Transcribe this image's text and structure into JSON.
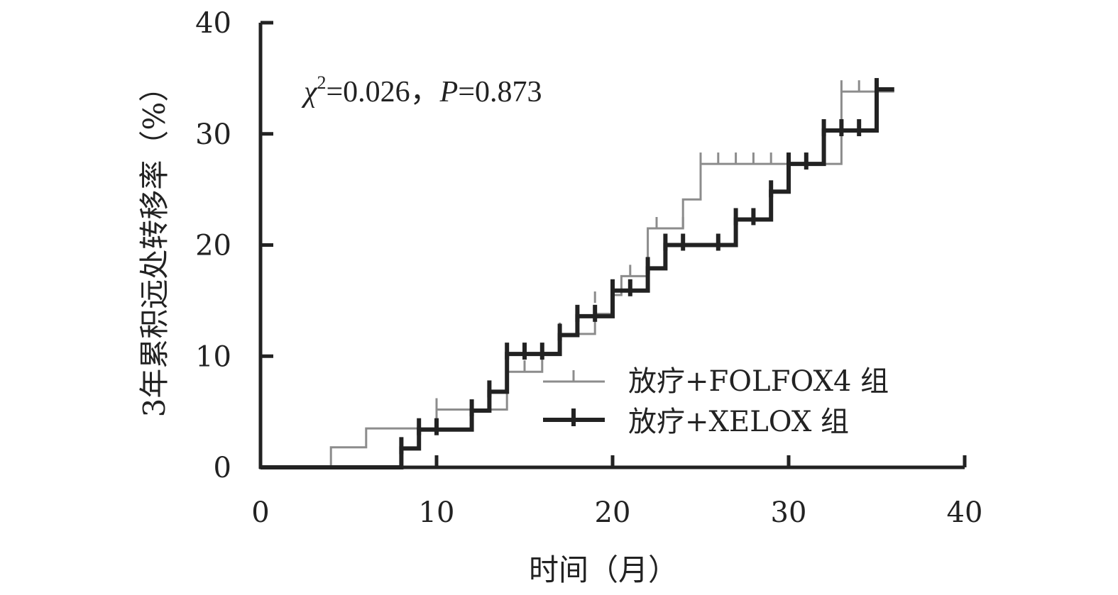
{
  "chart_data": {
    "type": "line",
    "subtype": "step",
    "xlabel": "时间（月）",
    "ylabel": "3年累积远处转移率（%）",
    "xlim": [
      0,
      40
    ],
    "ylim": [
      0,
      40
    ],
    "xticks": [
      "0",
      "10",
      "20",
      "30",
      "40"
    ],
    "yticks": [
      "0",
      "10",
      "20",
      "30",
      "40"
    ],
    "grid": false,
    "legend_position": "lower-right",
    "annotation": {
      "chi_symbol": "χ",
      "chi_sup": "2",
      "chi_value": "=0.026，",
      "p_symbol": "P",
      "p_value": "=0.873"
    },
    "series": [
      {
        "name": "放疗+FOLFOX4 组",
        "color": "#8c8c8c",
        "steps": [
          [
            0,
            0
          ],
          [
            4,
            1.8
          ],
          [
            6,
            3.5
          ],
          [
            10,
            5.2
          ],
          [
            12,
            5.2
          ],
          [
            14,
            8.6
          ],
          [
            16,
            10.3
          ],
          [
            17,
            12.0
          ],
          [
            18,
            12.0
          ],
          [
            19,
            13.8
          ],
          [
            20,
            15.5
          ],
          [
            20.5,
            17.2
          ],
          [
            22,
            21.5
          ],
          [
            24,
            24.1
          ],
          [
            25,
            27.3
          ],
          [
            33,
            33.8
          ],
          [
            36,
            33.8
          ]
        ],
        "censored": [
          [
            10,
            5.2
          ],
          [
            15,
            8.6
          ],
          [
            17,
            12.0
          ],
          [
            18,
            13.2
          ],
          [
            19,
            14.8
          ],
          [
            21,
            17.2
          ],
          [
            22.5,
            21.5
          ],
          [
            24,
            21.5
          ],
          [
            25,
            27.3
          ],
          [
            26,
            27.3
          ],
          [
            27,
            27.3
          ],
          [
            28,
            27.3
          ],
          [
            29,
            27.3
          ],
          [
            30,
            27.3
          ],
          [
            31,
            27.3
          ],
          [
            32,
            27.3
          ],
          [
            33,
            33.8
          ],
          [
            34,
            33.8
          ],
          [
            35,
            33.8
          ]
        ]
      },
      {
        "name": "放疗+XELOX 组",
        "color": "#222222",
        "steps": [
          [
            0,
            0
          ],
          [
            8,
            1.7
          ],
          [
            9,
            3.4
          ],
          [
            12,
            5.1
          ],
          [
            13,
            6.8
          ],
          [
            14,
            10.2
          ],
          [
            17,
            11.9
          ],
          [
            18,
            13.6
          ],
          [
            20,
            15.9
          ],
          [
            22,
            17.9
          ],
          [
            23,
            20.0
          ],
          [
            27,
            22.3
          ],
          [
            29,
            24.8
          ],
          [
            30,
            27.3
          ],
          [
            32,
            30.3
          ],
          [
            35,
            34.0
          ],
          [
            36,
            34.0
          ]
        ],
        "censored": [
          [
            8,
            1.7
          ],
          [
            9,
            3.4
          ],
          [
            10,
            3.4
          ],
          [
            12,
            5.1
          ],
          [
            13,
            6.8
          ],
          [
            14,
            10.2
          ],
          [
            15,
            10.2
          ],
          [
            16,
            10.2
          ],
          [
            17,
            11.9
          ],
          [
            18,
            13.6
          ],
          [
            19,
            13.6
          ],
          [
            20,
            15.9
          ],
          [
            21,
            15.9
          ],
          [
            22,
            17.9
          ],
          [
            23,
            20.0
          ],
          [
            24,
            20.0
          ],
          [
            26,
            20.0
          ],
          [
            27,
            22.3
          ],
          [
            28,
            22.3
          ],
          [
            29,
            24.8
          ],
          [
            30,
            27.3
          ],
          [
            31,
            27.3
          ],
          [
            32,
            30.3
          ],
          [
            33,
            30.3
          ],
          [
            34,
            30.3
          ],
          [
            35,
            34.0
          ]
        ]
      }
    ]
  }
}
